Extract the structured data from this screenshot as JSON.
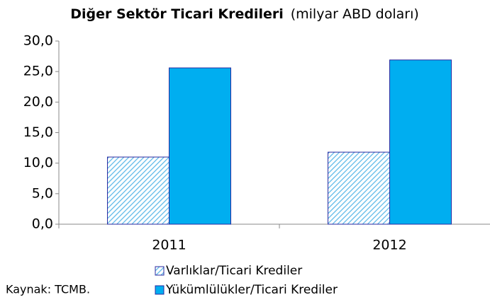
{
  "chart_data": {
    "type": "bar",
    "title": "Diğer Sektör Ticari Kredileri",
    "subtitle": "(milyar ABD doları)",
    "source": "Kaynak: TCMB.",
    "categories": [
      "2011",
      "2012"
    ],
    "series": [
      {
        "name": "Varlıklar/Ticari Krediler",
        "color": "#5bb8e8",
        "hatch": true,
        "values": [
          11.0,
          11.8
        ]
      },
      {
        "name": "Yükümlülükler/Ticari Krediler",
        "color": "#00aef0",
        "hatch": false,
        "values": [
          25.6,
          26.9
        ]
      }
    ],
    "ylim": [
      0,
      30
    ],
    "yticks": [
      {
        "value": 0,
        "label": "0,0"
      },
      {
        "value": 5,
        "label": "5,0"
      },
      {
        "value": 10,
        "label": "10,0"
      },
      {
        "value": 15,
        "label": "15,0"
      },
      {
        "value": 20,
        "label": "20,0"
      },
      {
        "value": 25,
        "label": "25,0"
      },
      {
        "value": 30,
        "label": "30,0"
      }
    ],
    "grid": false
  }
}
